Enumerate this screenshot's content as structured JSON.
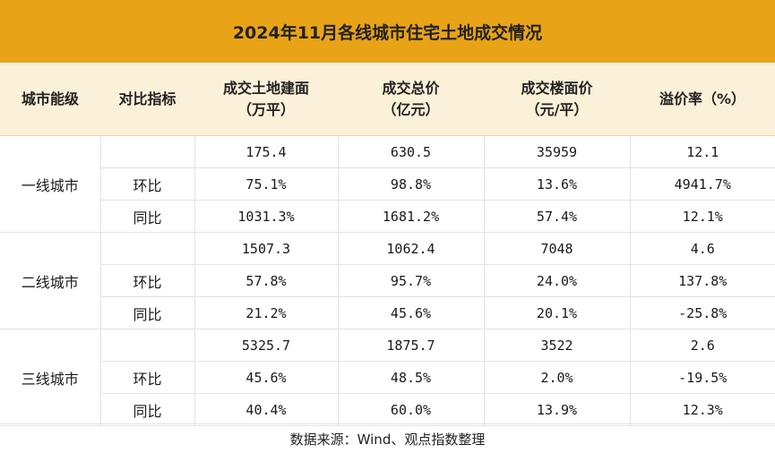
{
  "title": "2024年11月各线城市住宅土地成交情况",
  "header": {
    "city_level": "城市能级",
    "indicator": "对比指标",
    "col1_line1": "成交土地建面",
    "col1_line2": "（万平）",
    "col2_line1": "成交总价",
    "col2_line2": "（亿元）",
    "col3_line1": "成交楼面价",
    "col3_line2": "（元/平）",
    "col4": "溢价率（%）"
  },
  "groups": [
    {
      "city": "一线城市",
      "rows": [
        {
          "metric": "",
          "area": "175.4",
          "total": "630.5",
          "floor_price": "35959",
          "premium": "12.1"
        },
        {
          "metric": "环比",
          "area": "75.1%",
          "total": "98.8%",
          "floor_price": "13.6%",
          "premium": "4941.7%"
        },
        {
          "metric": "同比",
          "area": "1031.3%",
          "total": "1681.2%",
          "floor_price": "57.4%",
          "premium": "12.1%"
        }
      ]
    },
    {
      "city": "二线城市",
      "rows": [
        {
          "metric": "",
          "area": "1507.3",
          "total": "1062.4",
          "floor_price": "7048",
          "premium": "4.6"
        },
        {
          "metric": "环比",
          "area": "57.8%",
          "total": "95.7%",
          "floor_price": "24.0%",
          "premium": "137.8%"
        },
        {
          "metric": "同比",
          "area": "21.2%",
          "total": "45.6%",
          "floor_price": "20.1%",
          "premium": "-25.8%"
        }
      ]
    },
    {
      "city": "三线城市",
      "rows": [
        {
          "metric": "",
          "area": "5325.7",
          "total": "1875.7",
          "floor_price": "3522",
          "premium": "2.6"
        },
        {
          "metric": "环比",
          "area": "45.6%",
          "total": "48.5%",
          "floor_price": "2.0%",
          "premium": "-19.5%"
        },
        {
          "metric": "同比",
          "area": "40.4%",
          "total": "60.0%",
          "floor_price": "13.9%",
          "premium": "12.3%"
        }
      ]
    }
  ],
  "source": "数据来源：Wind、观点指数整理",
  "colors": {
    "title_bg": "#e8a317",
    "header_bg": "#fbf0d8"
  }
}
